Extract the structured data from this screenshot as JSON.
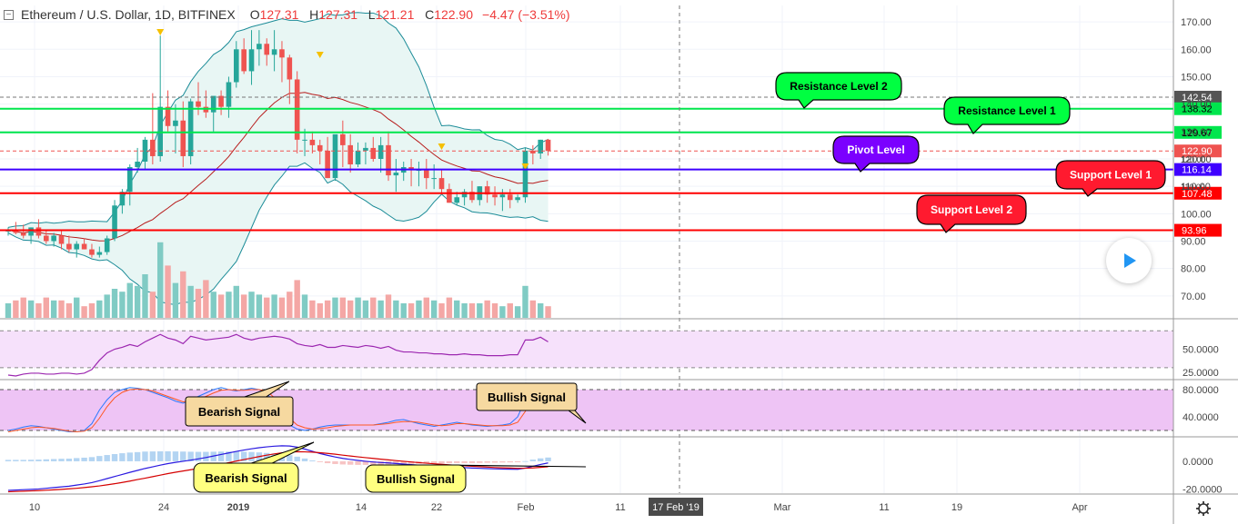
{
  "header": {
    "symbol": "Ethereum / U.S. Dollar, 1D, BITFINEX",
    "o_label": "O",
    "o": "127.31",
    "h_label": "H",
    "h": "127.31",
    "l_label": "L",
    "l": "121.21",
    "c_label": "C",
    "c": "122.90",
    "change": "−4.47 (−3.51%)"
  },
  "colors": {
    "up": "#26a69a",
    "down": "#ef5350",
    "resistance": "#00e64d",
    "support": "#ff0000",
    "pivot": "#3f00ff",
    "bb": "#1c8c98",
    "bb_fill": "#e8f6f4",
    "ma": "#b71c1c",
    "rsi_line": "#9c27b0",
    "rsi_band": "#f6e1fb",
    "stoch_band": "#eec4f5",
    "label_green": "#00ff41",
    "label_red": "#ff1a2f",
    "label_purple": "#7b00ff",
    "callout": "#f6d9a0",
    "callout_yellow": "#ffff80"
  },
  "play_button": {
    "icon": "play-icon"
  },
  "chart_data": [
    {
      "type": "candlestick",
      "panel": "price",
      "ylim": [
        62,
        176
      ],
      "y_ticks": [
        "170.00",
        "160.00",
        "150.00",
        "140.00",
        "130.00",
        "120.00",
        "110.00",
        "100.00",
        "90.00",
        "80.00",
        "70.00"
      ],
      "x_tick_labels": [
        "10",
        "24",
        "2019",
        "14",
        "22",
        "Feb",
        "11",
        "Mar",
        "11",
        "19",
        "Apr"
      ],
      "x_cursor_label": "17 Feb '19",
      "ohlc": [
        [
          93.5,
          95,
          92,
          94
        ],
        [
          94,
          97,
          92.5,
          93
        ],
        [
          93,
          96,
          91,
          92
        ],
        [
          92,
          95,
          89,
          95
        ],
        [
          95,
          98,
          91,
          92
        ],
        [
          92,
          94,
          89,
          90
        ],
        [
          90,
          93,
          88,
          92
        ],
        [
          92,
          94,
          87,
          89
        ],
        [
          89,
          92,
          86,
          87
        ],
        [
          87,
          90,
          84,
          89
        ],
        [
          89,
          91,
          87,
          87
        ],
        [
          87,
          89,
          84,
          85
        ],
        [
          85,
          88,
          84,
          86
        ],
        [
          86,
          92,
          85,
          91
        ],
        [
          91,
          105,
          90,
          103
        ],
        [
          103,
          109,
          100,
          108
        ],
        [
          108,
          118,
          103,
          117
        ],
        [
          117,
          124,
          115,
          119
        ],
        [
          119,
          128,
          116,
          127
        ],
        [
          127,
          144,
          118,
          121
        ],
        [
          121,
          165,
          119,
          139
        ],
        [
          139,
          145,
          130,
          132
        ],
        [
          132,
          140,
          122,
          134
        ],
        [
          134,
          141,
          117,
          121
        ],
        [
          121,
          142,
          118,
          141
        ],
        [
          141,
          148,
          136,
          139
        ],
        [
          139,
          145,
          135,
          137
        ],
        [
          137,
          142,
          130,
          143
        ],
        [
          143,
          145,
          136,
          139
        ],
        [
          139,
          150,
          135,
          148
        ],
        [
          148,
          163,
          146,
          160
        ],
        [
          160,
          164,
          151,
          152
        ],
        [
          152,
          167,
          147,
          160
        ],
        [
          160,
          167,
          154,
          162
        ],
        [
          162,
          164,
          154,
          158
        ],
        [
          158,
          167,
          152,
          160
        ],
        [
          160,
          163,
          148,
          157
        ],
        [
          157,
          158,
          140,
          149
        ],
        [
          149,
          152,
          122,
          127
        ],
        [
          127,
          131,
          121,
          127
        ],
        [
          127,
          130,
          122,
          125
        ],
        [
          125,
          127,
          118,
          123
        ],
        [
          123,
          128,
          113,
          113
        ],
        [
          113,
          128,
          112,
          129
        ],
        [
          129,
          134,
          117,
          125
        ],
        [
          125,
          129,
          115,
          118
        ],
        [
          118,
          126,
          117,
          123
        ],
        [
          123,
          126,
          118,
          124
        ],
        [
          124,
          128,
          119,
          120
        ],
        [
          120,
          128,
          115,
          125
        ],
        [
          125,
          130,
          112,
          114
        ],
        [
          114,
          120,
          108,
          115
        ],
        [
          115,
          119,
          112,
          117
        ],
        [
          117,
          120,
          110,
          116
        ],
        [
          116,
          119,
          110,
          116
        ],
        [
          116,
          120,
          109,
          113
        ],
        [
          113,
          118,
          109,
          113
        ],
        [
          113,
          116,
          107,
          109
        ],
        [
          109,
          111,
          104,
          104
        ],
        [
          104,
          108,
          103,
          106
        ],
        [
          106,
          109,
          103,
          108
        ],
        [
          108,
          112,
          104,
          105
        ],
        [
          105,
          110,
          103,
          110
        ],
        [
          110,
          112,
          104,
          107
        ],
        [
          107,
          110,
          103,
          106
        ],
        [
          106,
          109,
          101,
          107
        ],
        [
          107,
          109,
          102,
          105
        ],
        [
          105,
          107,
          104,
          106
        ],
        [
          106,
          124,
          104,
          123
        ],
        [
          123,
          125,
          118,
          122
        ],
        [
          122,
          127,
          120,
          127
        ],
        [
          127,
          127.31,
          121.21,
          122.9
        ]
      ],
      "volume_rel": [
        0.5,
        0.6,
        0.7,
        0.6,
        0.5,
        0.7,
        0.6,
        0.6,
        0.5,
        0.7,
        0.4,
        0.5,
        0.6,
        0.8,
        1.0,
        0.9,
        1.2,
        1.1,
        1.5,
        0.9,
        2.6,
        1.8,
        1.2,
        1.6,
        1.1,
        1.0,
        1.3,
        0.9,
        0.8,
        0.9,
        1.1,
        0.8,
        0.9,
        0.8,
        0.7,
        0.8,
        0.7,
        0.9,
        1.3,
        0.8,
        0.6,
        0.5,
        0.6,
        0.7,
        0.7,
        0.6,
        0.7,
        0.6,
        0.7,
        0.6,
        0.8,
        0.6,
        0.5,
        0.5,
        0.6,
        0.7,
        0.6,
        0.5,
        0.7,
        0.6,
        0.5,
        0.5,
        0.5,
        0.6,
        0.5,
        0.4,
        0.5,
        0.4,
        1.1,
        0.6,
        0.5,
        0.4
      ]
    },
    {
      "type": "line",
      "panel": "rsi",
      "ylim": [
        20,
        82
      ],
      "y_ticks": [
        "50.0000",
        "25.0000"
      ],
      "band": [
        30,
        70
      ],
      "values": [
        22,
        21,
        23,
        24,
        24,
        23,
        23,
        24,
        24,
        23,
        24,
        28,
        38,
        46,
        50,
        52,
        55,
        53,
        58,
        62,
        66,
        62,
        60,
        56,
        64,
        62,
        60,
        61,
        62,
        63,
        66,
        62,
        60,
        62,
        63,
        64,
        63,
        61,
        56,
        54,
        53,
        55,
        52,
        52,
        54,
        53,
        52,
        54,
        53,
        51,
        53,
        49,
        47,
        47,
        46,
        46,
        45,
        45,
        44,
        44,
        45,
        44,
        44,
        43,
        43,
        43,
        44,
        44,
        60,
        60,
        63,
        58
      ]
    },
    {
      "type": "line",
      "panel": "stochastic",
      "ylim": [
        12,
        92
      ],
      "y_ticks": [
        "80.0000",
        "40.0000"
      ],
      "band": [
        20,
        80
      ],
      "series_k": [
        20,
        22,
        25,
        27,
        26,
        24,
        22,
        20,
        18,
        18,
        20,
        30,
        50,
        65,
        76,
        80,
        83,
        82,
        80,
        76,
        72,
        68,
        63,
        60,
        65,
        70,
        75,
        80,
        83,
        80,
        78,
        80,
        82,
        80,
        75,
        60,
        40,
        28,
        22,
        20,
        22,
        25,
        27,
        28,
        28,
        28,
        28,
        28,
        28,
        30,
        32,
        35,
        36,
        33,
        30,
        28,
        26,
        28,
        30,
        32,
        30,
        28,
        27,
        26,
        27,
        28,
        30,
        40,
        65,
        84,
        86,
        85
      ],
      "series_d": [
        18,
        20,
        22,
        24,
        25,
        24,
        23,
        21,
        19,
        18,
        19,
        24,
        38,
        55,
        68,
        76,
        80,
        81,
        80,
        78,
        74,
        70,
        66,
        62,
        63,
        66,
        70,
        75,
        79,
        80,
        79,
        79,
        80,
        80,
        78,
        68,
        52,
        38,
        28,
        24,
        22,
        23,
        24,
        26,
        27,
        28,
        28,
        28,
        28,
        29,
        30,
        32,
        33,
        33,
        32,
        30,
        28,
        27,
        28,
        30,
        30,
        29,
        28,
        27,
        27,
        27,
        28,
        32,
        48,
        68,
        78,
        82
      ]
    },
    {
      "type": "line",
      "panel": "macd",
      "ylim": [
        -23,
        17
      ],
      "y_ticks": [
        "0.0000",
        "-20.0000"
      ],
      "macd": [
        -21,
        -20.8,
        -20.5,
        -20.3,
        -20,
        -19.5,
        -19,
        -18.5,
        -18,
        -17.2,
        -16.4,
        -15.4,
        -14,
        -12.5,
        -11,
        -9.5,
        -8,
        -6.6,
        -5.2,
        -4,
        -2.8,
        -1.7,
        -0.8,
        0,
        0.8,
        1.7,
        2.7,
        3.8,
        4.9,
        6,
        7.1,
        8.1,
        9,
        9.8,
        10.4,
        10.9,
        11.2,
        11,
        10.2,
        8.8,
        7.2,
        5.6,
        4.3,
        3.1,
        2.1,
        1.3,
        0.6,
        0,
        -0.5,
        -0.9,
        -1.2,
        -1.6,
        -2,
        -2.4,
        -2.8,
        -3.1,
        -3.4,
        -3.7,
        -4,
        -4.3,
        -4.6,
        -4.9,
        -5.1,
        -5.3,
        -5.5,
        -5.6,
        -5.7,
        -5.8,
        -4.9,
        -3.6,
        -2.3,
        -1.2
      ],
      "signal": [
        -22,
        -21.8,
        -21.6,
        -21.4,
        -21.2,
        -20.9,
        -20.6,
        -20.3,
        -19.9,
        -19.5,
        -19,
        -18.4,
        -17.8,
        -17,
        -16.2,
        -15.3,
        -14.3,
        -13.2,
        -12.2,
        -11.1,
        -10,
        -8.9,
        -7.9,
        -7,
        -6.1,
        -5.1,
        -4.1,
        -3.1,
        -2.1,
        -1,
        0.1,
        1.2,
        2.3,
        3.4,
        4.4,
        5.3,
        6.1,
        6.6,
        6.9,
        6.8,
        6.6,
        6.2,
        5.7,
        5.1,
        4.4,
        3.8,
        3.2,
        2.6,
        2.1,
        1.5,
        1,
        0.5,
        0,
        -0.5,
        -1,
        -1.4,
        -1.8,
        -2.2,
        -2.6,
        -3,
        -3.3,
        -3.6,
        -3.9,
        -4.2,
        -4.5,
        -4.7,
        -4.9,
        -5.1,
        -5,
        -4.8,
        -4.4,
        -3.9
      ],
      "histogram": [
        1,
        1,
        1,
        1.1,
        1.2,
        1.4,
        1.6,
        1.8,
        1.9,
        2.3,
        2.6,
        3,
        3.8,
        4.5,
        5.2,
        5.8,
        6.3,
        6.6,
        7,
        7.1,
        7.2,
        7.2,
        7.1,
        7,
        6.9,
        6.8,
        6.8,
        6.9,
        7,
        7,
        7,
        6.9,
        6.7,
        6.4,
        6,
        5.6,
        5.1,
        4.4,
        3.3,
        2,
        0.6,
        -0.6,
        -1.4,
        -2,
        -2.3,
        -2.5,
        -2.6,
        -2.6,
        -2.6,
        -2.4,
        -2.2,
        -2.1,
        -2,
        -1.9,
        -1.8,
        -1.7,
        -1.6,
        -1.5,
        -1.4,
        -1.3,
        -1.3,
        -1.3,
        -1.2,
        -1.1,
        -1,
        -0.9,
        -0.8,
        -0.7,
        0.1,
        1.2,
        2.1,
        2.7
      ]
    }
  ],
  "levels": [
    {
      "key": "res2",
      "value": 142.54,
      "price_label": "142.54",
      "name": "Resistance Level 2",
      "dashed": true
    },
    {
      "key": "res1",
      "value": 138.32,
      "price_label": "138.32",
      "name": "Resistance Level 1",
      "dashed": false
    },
    {
      "key": "hline",
      "value": 129.67,
      "price_label": "129.67",
      "dashed": false
    },
    {
      "key": "last",
      "value": 122.9,
      "price_label": "122.90",
      "dashed": true
    },
    {
      "key": "pivot",
      "value": 116.14,
      "price_label": "116.14",
      "name": "Pivot Level",
      "dashed": false
    },
    {
      "key": "sup1",
      "value": 107.48,
      "price_label": "107.48",
      "name": "Support Level 1",
      "dashed": false
    },
    {
      "key": "sup2",
      "value": 93.96,
      "price_label": "93.96",
      "name": "Support Level 2",
      "dashed": false
    }
  ],
  "price_axis_extra": [
    "120.00",
    "110.00"
  ],
  "signals": [
    {
      "text": "Bearish Signal",
      "panel": "stochastic"
    },
    {
      "text": "Bullish Signal",
      "panel": "stochastic"
    },
    {
      "text": "Bearish Signal",
      "panel": "macd"
    },
    {
      "text": "Bullish Signal",
      "panel": "macd"
    }
  ]
}
